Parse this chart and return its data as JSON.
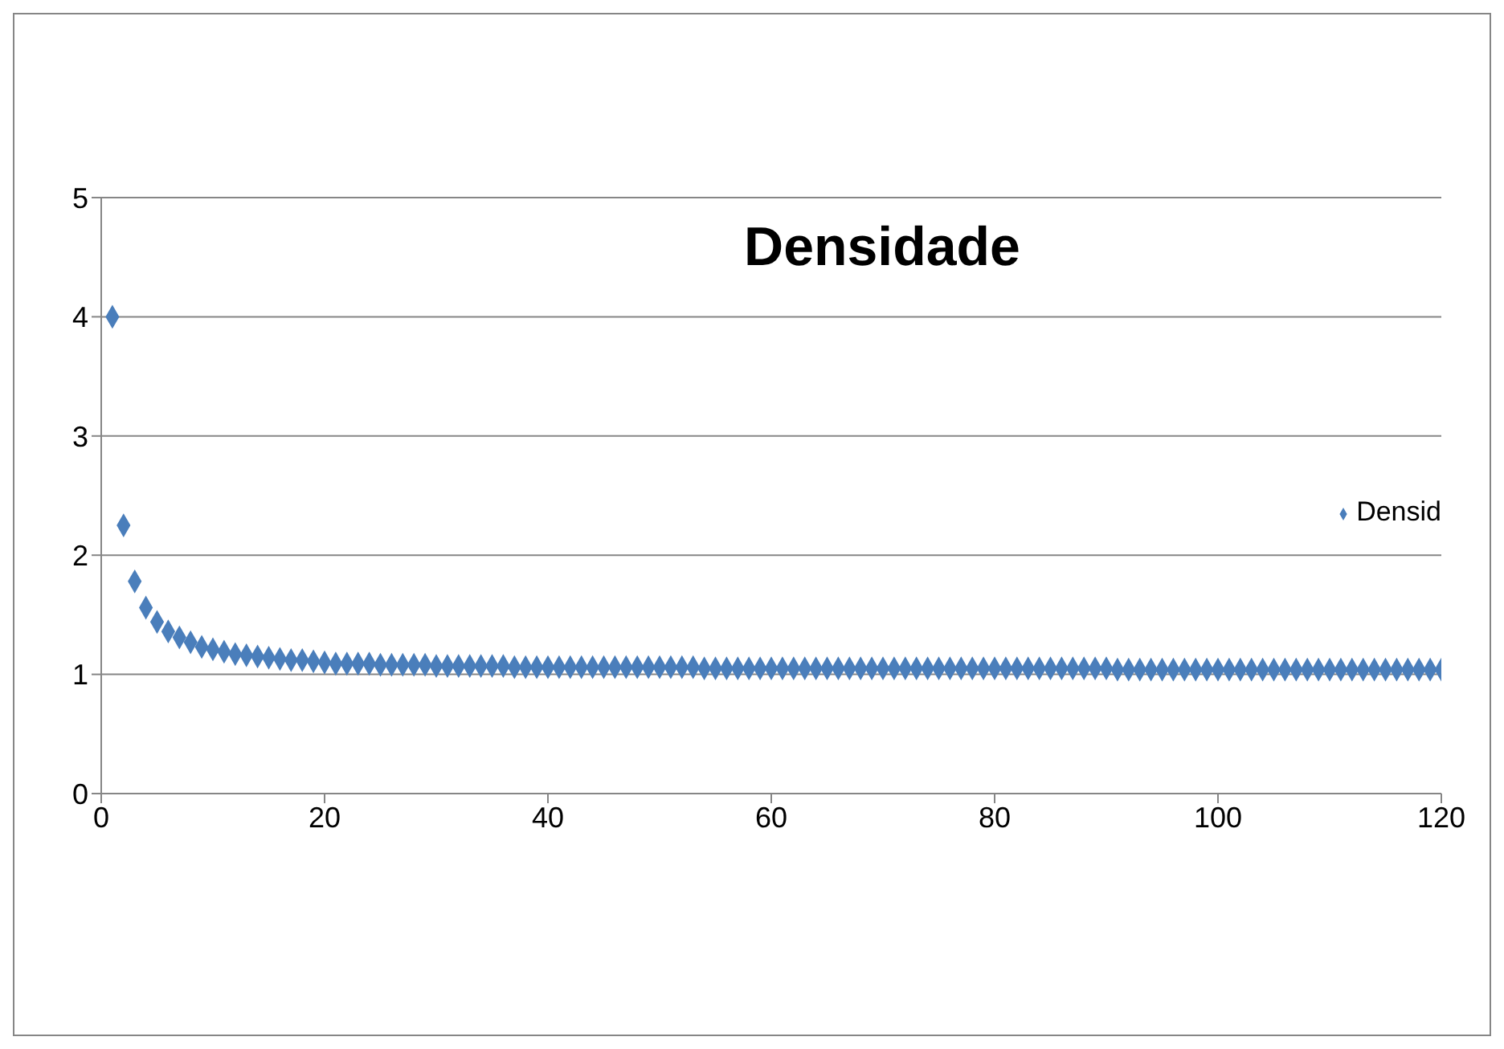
{
  "chart_data": {
    "type": "scatter",
    "title": "Densidade",
    "x": [
      1,
      2,
      3,
      4,
      5,
      6,
      7,
      8,
      9,
      10,
      11,
      12,
      13,
      14,
      15,
      16,
      17,
      18,
      19,
      20,
      21,
      22,
      23,
      24,
      25,
      26,
      27,
      28,
      29,
      30,
      31,
      32,
      33,
      34,
      35,
      36,
      37,
      38,
      39,
      40,
      41,
      42,
      43,
      44,
      45,
      46,
      47,
      48,
      49,
      50,
      51,
      52,
      53,
      54,
      55,
      56,
      57,
      58,
      59,
      60,
      61,
      62,
      63,
      64,
      65,
      66,
      67,
      68,
      69,
      70,
      71,
      72,
      73,
      74,
      75,
      76,
      77,
      78,
      79,
      80,
      81,
      82,
      83,
      84,
      85,
      86,
      87,
      88,
      89,
      90,
      91,
      92,
      93,
      94,
      95,
      96,
      97,
      98,
      99,
      100,
      101,
      102,
      103,
      104,
      105,
      106,
      107,
      108,
      109,
      110,
      111,
      112,
      113,
      114,
      115,
      116,
      117,
      118,
      119,
      120
    ],
    "series": [
      {
        "name": "Densid",
        "color": "#4a7ebb",
        "values": [
          4,
          2.25,
          1.78,
          1.56,
          1.44,
          1.36,
          1.31,
          1.27,
          1.23,
          1.21,
          1.19,
          1.17,
          1.16,
          1.15,
          1.14,
          1.13,
          1.12,
          1.12,
          1.11,
          1.1,
          1.09,
          1.09,
          1.09,
          1.09,
          1.08,
          1.08,
          1.08,
          1.08,
          1.08,
          1.07,
          1.07,
          1.07,
          1.07,
          1.07,
          1.07,
          1.07,
          1.06,
          1.06,
          1.06,
          1.06,
          1.06,
          1.06,
          1.06,
          1.06,
          1.06,
          1.06,
          1.06,
          1.06,
          1.06,
          1.06,
          1.06,
          1.06,
          1.06,
          1.05,
          1.05,
          1.05,
          1.05,
          1.05,
          1.05,
          1.05,
          1.05,
          1.05,
          1.05,
          1.05,
          1.05,
          1.05,
          1.05,
          1.05,
          1.05,
          1.05,
          1.05,
          1.05,
          1.05,
          1.05,
          1.05,
          1.05,
          1.05,
          1.05,
          1.05,
          1.05,
          1.05,
          1.05,
          1.05,
          1.05,
          1.05,
          1.05,
          1.05,
          1.05,
          1.05,
          1.05,
          1.04,
          1.04,
          1.04,
          1.04,
          1.04,
          1.04,
          1.04,
          1.04,
          1.04,
          1.04,
          1.04,
          1.04,
          1.04,
          1.04,
          1.04,
          1.04,
          1.04,
          1.04,
          1.04,
          1.04,
          1.04,
          1.04,
          1.04,
          1.04,
          1.04,
          1.04,
          1.04,
          1.04,
          1.04,
          1.04
        ]
      }
    ],
    "xlim": [
      0,
      120
    ],
    "xticks": [
      0,
      20,
      40,
      60,
      80,
      100,
      120
    ],
    "ylim": [
      0,
      5
    ],
    "yticks": [
      0,
      1,
      2,
      3,
      4,
      5
    ],
    "grid": "y",
    "legend": "right",
    "marker": "diamond"
  }
}
